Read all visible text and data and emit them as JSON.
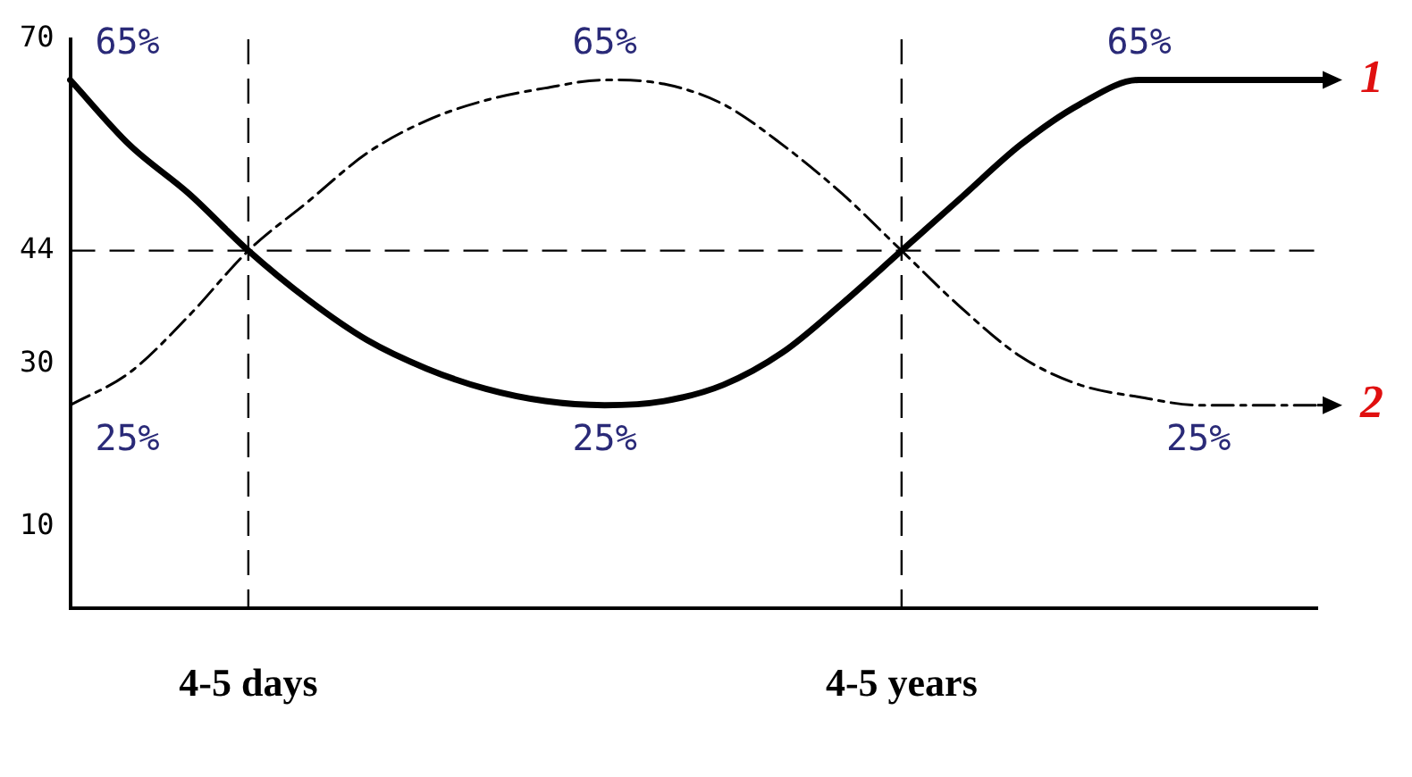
{
  "chart_data": {
    "type": "line",
    "categories": [
      null,
      null,
      null,
      "4-5 days",
      null,
      null,
      null,
      null,
      null,
      null,
      null,
      null,
      null,
      null,
      "4-5 years",
      null,
      null,
      null,
      null,
      null,
      null,
      null
    ],
    "series": [
      {
        "name": "1",
        "color": "#000000",
        "line_style": "solid",
        "values": [
          65,
          57,
          51,
          44,
          38,
          33,
          29.5,
          27,
          25.5,
          25,
          25.5,
          27.5,
          31.5,
          37.5,
          44,
          50.5,
          57,
          62,
          65,
          65,
          65,
          65
        ],
        "value_labels": [
          "65%",
          null,
          null,
          null,
          null,
          null,
          null,
          null,
          null,
          "25%",
          null,
          null,
          null,
          null,
          null,
          null,
          null,
          null,
          "65%",
          null,
          null,
          null
        ]
      },
      {
        "name": "2",
        "color": "#000000",
        "line_style": "dashed",
        "values": [
          25,
          29,
          36,
          44,
          50,
          56,
          60,
          62.5,
          64,
          65,
          64.5,
          62,
          57,
          51,
          44,
          37,
          31,
          27.5,
          26,
          25,
          25,
          25
        ],
        "value_labels": [
          "25%",
          null,
          null,
          null,
          null,
          null,
          null,
          null,
          null,
          "65%",
          null,
          null,
          null,
          null,
          null,
          null,
          null,
          null,
          null,
          "25%",
          null,
          null
        ]
      }
    ],
    "ylim": [
      0,
      70
    ],
    "yticks": [
      10,
      30,
      44,
      70
    ],
    "ref_lines": [
      {
        "axis": "y",
        "value": 44,
        "line_style": "dashed"
      },
      {
        "axis": "x",
        "value": "4-5 days",
        "line_style": "dashed"
      },
      {
        "axis": "x",
        "value": "4-5 years",
        "line_style": "dashed"
      }
    ],
    "grid": false,
    "legend": "right",
    "marker": "none"
  }
}
